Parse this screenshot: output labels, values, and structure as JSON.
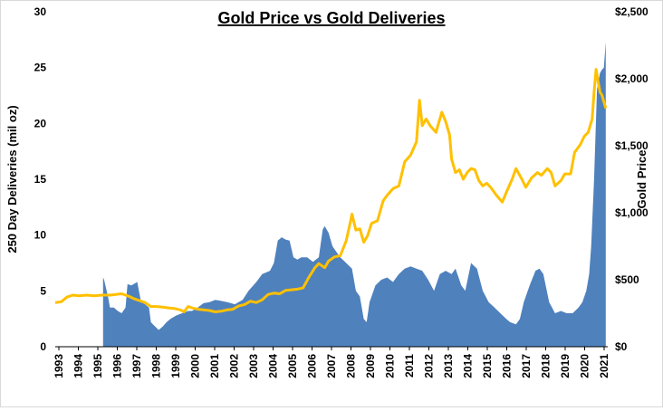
{
  "chart_data": {
    "type": "area+line",
    "title": "Gold Price vs Gold Deliveries",
    "xlabel": "",
    "ylabel": "250 Day Deliveries (mil oz)",
    "y2label": "Gold Price",
    "xlim": [
      1993,
      2021.3
    ],
    "ylim": [
      0,
      30
    ],
    "y2lim": [
      0,
      2500
    ],
    "y_ticks": [
      "0",
      "5",
      "10",
      "15",
      "20",
      "25",
      "30"
    ],
    "y2_ticks": [
      "$0",
      "$500",
      "$1,000",
      "$1,500",
      "$2,000",
      "$2,500"
    ],
    "x_ticks": [
      "1993",
      "1994",
      "1995",
      "1996",
      "1997",
      "1998",
      "1999",
      "2000",
      "2001",
      "2002",
      "2003",
      "2004",
      "2005",
      "2006",
      "2007",
      "2008",
      "2009",
      "2010",
      "2011",
      "2012",
      "2013",
      "2014",
      "2015",
      "2016",
      "2017",
      "2018",
      "2019",
      "2020",
      "2021"
    ],
    "colors": {
      "deliveries": "#4f81bd",
      "price": "#ffc000"
    },
    "series": [
      {
        "name": "250 Day Deliveries (mil oz)",
        "axis": "left",
        "style": "area",
        "x": [
          1995.45,
          1995.5,
          1995.7,
          1995.8,
          1996.0,
          1996.2,
          1996.4,
          1996.6,
          1996.7,
          1996.9,
          1997.2,
          1997.4,
          1997.6,
          1997.8,
          1997.9,
          1998.0,
          1998.3,
          1998.5,
          1998.7,
          1998.9,
          1999.2,
          1999.5,
          1999.8,
          2000.0,
          2000.3,
          2000.6,
          2000.9,
          2001.2,
          2001.5,
          2001.8,
          2002.2,
          2002.6,
          2002.9,
          2003.3,
          2003.6,
          2004.0,
          2004.2,
          2004.4,
          2004.6,
          2004.8,
          2005.0,
          2005.2,
          2005.4,
          2005.6,
          2005.9,
          2006.2,
          2006.5,
          2006.7,
          2006.8,
          2007.0,
          2007.2,
          2007.4,
          2007.6,
          2007.9,
          2008.2,
          2008.4,
          2008.6,
          2008.8,
          2008.95,
          2009.1,
          2009.4,
          2009.7,
          2010.0,
          2010.3,
          2010.6,
          2010.9,
          2011.2,
          2011.5,
          2011.8,
          2012.1,
          2012.4,
          2012.7,
          2013.0,
          2013.3,
          2013.5,
          2013.8,
          2014.0,
          2014.3,
          2014.6,
          2014.9,
          2015.2,
          2015.5,
          2015.8,
          2016.1,
          2016.3,
          2016.6,
          2016.8,
          2017.0,
          2017.3,
          2017.6,
          2017.8,
          2018.0,
          2018.3,
          2018.6,
          2018.9,
          2019.2,
          2019.5,
          2019.8,
          2020.0,
          2020.2,
          2020.35,
          2020.45,
          2020.6,
          2020.75,
          2020.9,
          2021.0,
          2021.1,
          2021.2
        ],
        "values": [
          6.2,
          6.0,
          4.5,
          3.5,
          3.5,
          3.2,
          3.0,
          3.5,
          5.6,
          5.5,
          5.8,
          4.0,
          3.8,
          3.5,
          2.2,
          2.0,
          1.5,
          1.8,
          2.2,
          2.5,
          2.8,
          3.0,
          3.2,
          3.2,
          3.5,
          3.9,
          4.0,
          4.2,
          4.1,
          4.0,
          3.8,
          4.2,
          5.0,
          5.8,
          6.5,
          6.8,
          7.5,
          9.5,
          9.8,
          9.6,
          9.5,
          8.0,
          7.8,
          8.0,
          8.0,
          7.6,
          8.0,
          10.5,
          10.8,
          10.2,
          9.0,
          8.5,
          8.0,
          7.5,
          7.0,
          5.0,
          4.5,
          2.5,
          2.2,
          4.0,
          5.5,
          6.0,
          6.2,
          5.8,
          6.5,
          7.0,
          7.2,
          7.0,
          6.8,
          6.0,
          5.0,
          6.5,
          6.8,
          6.5,
          7.0,
          5.5,
          5.0,
          7.5,
          7.0,
          5.0,
          4.0,
          3.5,
          3.0,
          2.5,
          2.2,
          2.0,
          2.5,
          4.0,
          5.5,
          6.8,
          7.0,
          6.5,
          4.0,
          3.0,
          3.2,
          3.0,
          3.0,
          3.5,
          4.0,
          5.0,
          6.5,
          9.0,
          15.0,
          23.0,
          24.5,
          24.8,
          25.0,
          27.3
        ]
      },
      {
        "name": "Gold Price",
        "axis": "right",
        "style": "line",
        "x": [
          1993.0,
          1993.3,
          1993.6,
          1993.9,
          1994.2,
          1994.6,
          1995.0,
          1995.4,
          1995.8,
          1996.1,
          1996.4,
          1996.8,
          1997.0,
          1997.3,
          1997.6,
          1997.9,
          1998.2,
          1998.5,
          1998.8,
          1999.1,
          1999.4,
          1999.6,
          1999.8,
          2000.0,
          2000.3,
          2000.6,
          2000.9,
          2001.2,
          2001.5,
          2001.8,
          2002.1,
          2002.4,
          2002.7,
          2003.0,
          2003.3,
          2003.6,
          2003.9,
          2004.2,
          2004.5,
          2004.8,
          2005.1,
          2005.4,
          2005.7,
          2006.0,
          2006.3,
          2006.5,
          2006.8,
          2007.0,
          2007.3,
          2007.6,
          2007.9,
          2008.1,
          2008.2,
          2008.4,
          2008.6,
          2008.8,
          2009.0,
          2009.2,
          2009.5,
          2009.8,
          2010.0,
          2010.3,
          2010.6,
          2010.9,
          2011.2,
          2011.5,
          2011.66,
          2011.8,
          2012.0,
          2012.2,
          2012.5,
          2012.8,
          2013.0,
          2013.2,
          2013.3,
          2013.5,
          2013.7,
          2013.9,
          2014.1,
          2014.3,
          2014.5,
          2014.7,
          2014.9,
          2015.1,
          2015.3,
          2015.6,
          2015.9,
          2016.1,
          2016.4,
          2016.6,
          2016.9,
          2017.1,
          2017.4,
          2017.7,
          2017.9,
          2018.2,
          2018.4,
          2018.6,
          2018.9,
          2019.1,
          2019.4,
          2019.6,
          2019.9,
          2020.1,
          2020.3,
          2020.5,
          2020.6,
          2020.7,
          2020.9,
          2021.0,
          2021.2
        ],
        "values": [
          330,
          335,
          370,
          385,
          380,
          385,
          380,
          385,
          385,
          390,
          395,
          375,
          360,
          345,
          330,
          300,
          300,
          295,
          290,
          285,
          275,
          260,
          300,
          290,
          280,
          275,
          270,
          260,
          265,
          275,
          280,
          305,
          315,
          340,
          330,
          350,
          390,
          400,
          395,
          420,
          425,
          430,
          440,
          520,
          590,
          620,
          590,
          640,
          670,
          680,
          790,
          920,
          990,
          870,
          880,
          780,
          830,
          920,
          940,
          1090,
          1130,
          1180,
          1200,
          1380,
          1430,
          1530,
          1840,
          1650,
          1700,
          1650,
          1600,
          1750,
          1680,
          1580,
          1400,
          1300,
          1320,
          1250,
          1300,
          1330,
          1320,
          1240,
          1200,
          1220,
          1190,
          1130,
          1080,
          1150,
          1250,
          1330,
          1250,
          1190,
          1260,
          1300,
          1280,
          1330,
          1300,
          1200,
          1240,
          1290,
          1290,
          1450,
          1510,
          1570,
          1600,
          1700,
          1900,
          2070,
          1900,
          1880,
          1780
        ]
      }
    ]
  }
}
